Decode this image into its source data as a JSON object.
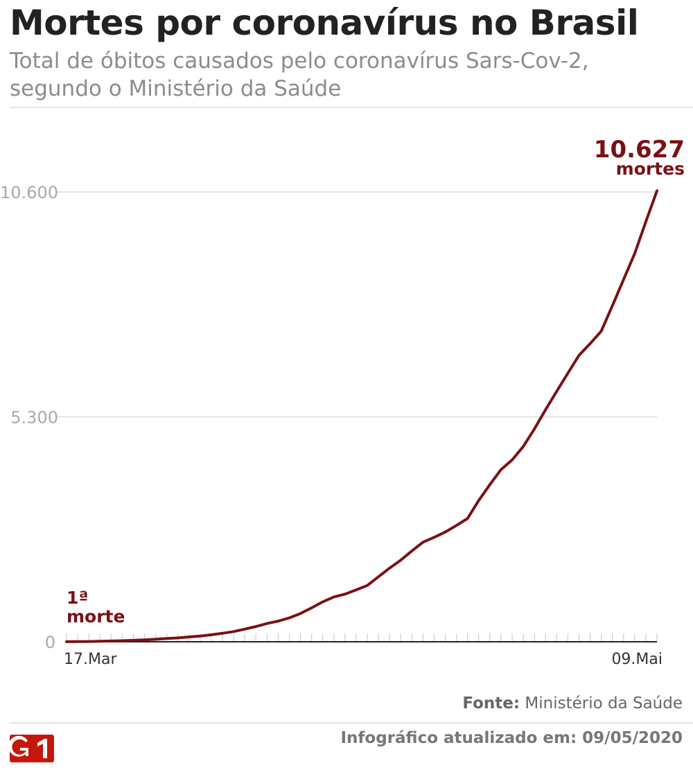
{
  "header": {
    "title": "Mortes por coronavírus no Brasil",
    "subtitle": "Total de óbitos causados pelo coronavírus Sars-Cov-2, segundo o Ministério da Saúde"
  },
  "annotations": {
    "end_value": "10.627",
    "end_unit": "mortes",
    "start_line1": "1ª",
    "start_line2": "morte"
  },
  "footer": {
    "source_label": "Fonte:",
    "source_text": "Ministério da Saúde",
    "updated_text": "Infográfico atualizado em: 09/05/2020"
  },
  "logo": {
    "text": "G1",
    "icon": "g1-logo-icon"
  },
  "colors": {
    "line": "#7a1114",
    "grid": "#dddddd",
    "axis": "#222222",
    "tick_label": "#aaaaaa",
    "logo": "#c4170c"
  },
  "chart_data": {
    "type": "line",
    "title": "Mortes por coronavírus no Brasil",
    "x_tick_labels": [
      "17.Mar",
      "09.Mai"
    ],
    "x_start": "17.Mar",
    "x_end": "09.Mai",
    "y_ticks": [
      0,
      5300,
      10600
    ],
    "y_tick_labels": [
      "0",
      "5.300",
      "10.600"
    ],
    "ylim": [
      0,
      10627
    ],
    "grid": true,
    "series": [
      {
        "values": [
          1,
          4,
          6,
          11,
          18,
          25,
          34,
          46,
          59,
          77,
          92,
          114,
          136,
          165,
          201,
          240,
          299,
          359,
          431,
          486,
          564,
          667,
          800,
          941,
          1056,
          1124,
          1223,
          1328,
          1532,
          1736,
          1924,
          2141,
          2347,
          2462,
          2587,
          2741,
          2906,
          3331,
          3704,
          4057,
          4286,
          4603,
          5017,
          5466,
          5901,
          6329,
          6750,
          7025,
          7321,
          7921,
          8536,
          9146,
          9897,
          10627
        ]
      }
    ]
  }
}
